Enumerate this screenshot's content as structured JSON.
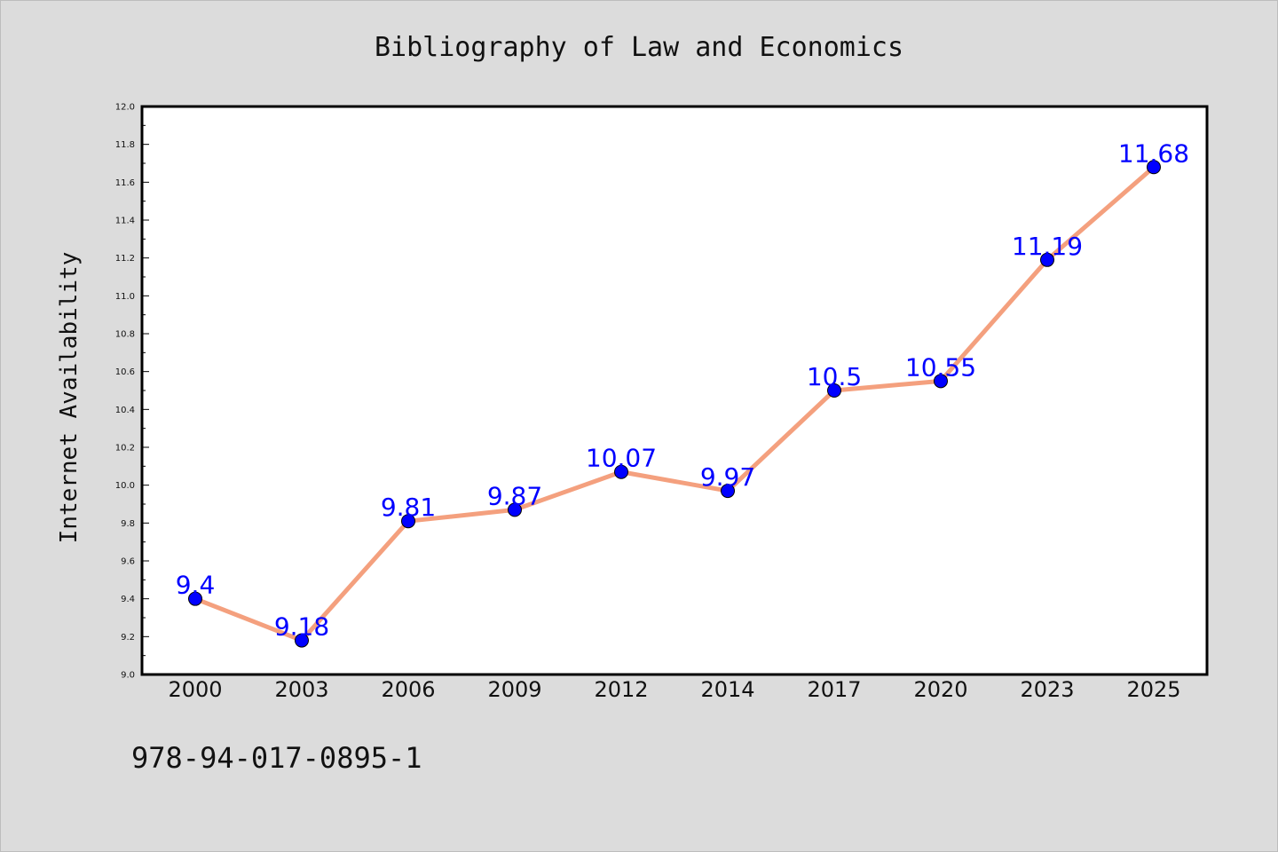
{
  "chart_data": {
    "type": "line",
    "title": "Bibliography of Law and Economics",
    "xlabel": "",
    "ylabel": "Internet Availability",
    "categories": [
      "2000",
      "2003",
      "2006",
      "2009",
      "2012",
      "2014",
      "2017",
      "2020",
      "2023",
      "2025"
    ],
    "series": [
      {
        "values": [
          9.4,
          9.18,
          9.81,
          9.87,
          10.07,
          9.97,
          10.5,
          10.55,
          11.19,
          11.68
        ],
        "labels": [
          "9.4",
          "9.18",
          "9.81",
          "9.87",
          "10.07",
          "9.97",
          "10.5",
          "10.55",
          "11.19",
          "11.68"
        ]
      }
    ],
    "ylim": [
      9.0,
      12.0
    ],
    "yticks": [
      "9.0",
      "9.2",
      "9.4",
      "9.6",
      "9.8",
      "10.0",
      "10.2",
      "10.4",
      "10.6",
      "10.8",
      "11.0",
      "11.2",
      "11.4",
      "11.6",
      "11.8",
      "12.0"
    ],
    "grid": false,
    "legend": "none",
    "colors": {
      "line": "#f4a07e",
      "marker": "#0000ff",
      "label": "#0000ff",
      "background": "#dcdcdc",
      "plot_background": "#ffffff"
    }
  },
  "footer_code": "978-94-017-0895-1"
}
